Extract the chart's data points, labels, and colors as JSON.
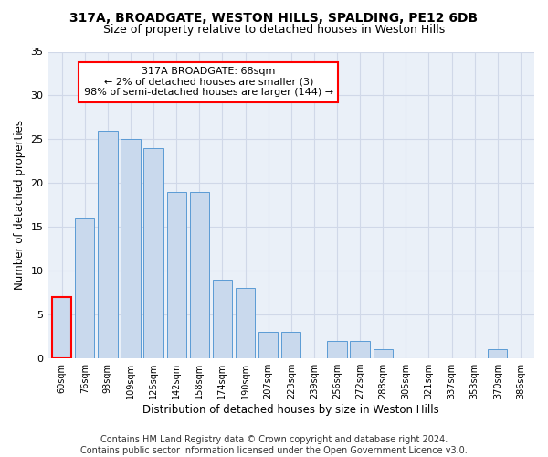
{
  "title1": "317A, BROADGATE, WESTON HILLS, SPALDING, PE12 6DB",
  "title2": "Size of property relative to detached houses in Weston Hills",
  "xlabel": "Distribution of detached houses by size in Weston Hills",
  "ylabel": "Number of detached properties",
  "categories": [
    "60sqm",
    "76sqm",
    "93sqm",
    "109sqm",
    "125sqm",
    "142sqm",
    "158sqm",
    "174sqm",
    "190sqm",
    "207sqm",
    "223sqm",
    "239sqm",
    "256sqm",
    "272sqm",
    "288sqm",
    "305sqm",
    "321sqm",
    "337sqm",
    "353sqm",
    "370sqm",
    "386sqm"
  ],
  "values": [
    7,
    16,
    26,
    25,
    24,
    19,
    19,
    9,
    8,
    3,
    3,
    0,
    2,
    2,
    1,
    0,
    0,
    0,
    0,
    1,
    0
  ],
  "bar_color": "#c9d9ed",
  "bar_edge_color": "#5b9bd5",
  "highlight_bar_index": 0,
  "highlight_bar_edge_color": "#ff0000",
  "annotation_text": "317A BROADGATE: 68sqm\n← 2% of detached houses are smaller (3)\n98% of semi-detached houses are larger (144) →",
  "annotation_box_color": "#ffffff",
  "annotation_box_edge_color": "#ff0000",
  "ylim": [
    0,
    35
  ],
  "yticks": [
    0,
    5,
    10,
    15,
    20,
    25,
    30,
    35
  ],
  "grid_color": "#d0d8e8",
  "background_color": "#eaf0f8",
  "footer_text": "Contains HM Land Registry data © Crown copyright and database right 2024.\nContains public sector information licensed under the Open Government Licence v3.0.",
  "title1_fontsize": 10,
  "title2_fontsize": 9,
  "xlabel_fontsize": 8.5,
  "ylabel_fontsize": 8.5,
  "annotation_fontsize": 8,
  "footer_fontsize": 7
}
